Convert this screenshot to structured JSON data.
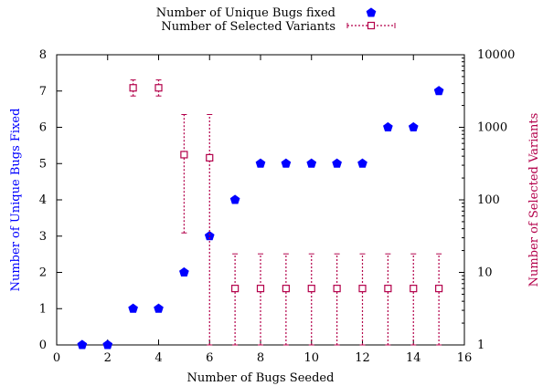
{
  "chart_data": {
    "type": "scatter",
    "xlabel": "Number of Bugs Seeded",
    "ylabel_left": "Number of Unique Bugs Fixed",
    "ylabel_right": "Number of Selected Variants",
    "xlim": [
      0,
      16
    ],
    "x_ticks": [
      0,
      2,
      4,
      6,
      8,
      10,
      12,
      14,
      16
    ],
    "ylim_left": [
      0,
      8
    ],
    "y_left_ticks": [
      0,
      1,
      2,
      3,
      4,
      5,
      6,
      7,
      8
    ],
    "ylim_right": [
      1,
      10000
    ],
    "y_right_scale": "log",
    "y_right_ticks": [
      1,
      10,
      100,
      1000,
      10000
    ],
    "grid": false,
    "legend_position": "top-center",
    "colors": {
      "bugs_fixed": "#0000ff",
      "variants": "#b3004a",
      "axis_left_label": "#0000ff",
      "axis_right_label": "#b3004a"
    },
    "series": [
      {
        "name": "Number of Unique Bugs fixed",
        "axis": "left",
        "marker": "pentagon",
        "x": [
          1,
          2,
          3,
          4,
          5,
          6,
          7,
          8,
          9,
          10,
          11,
          12,
          13,
          14,
          15
        ],
        "y": [
          0,
          0,
          1,
          1,
          2,
          3,
          4,
          5,
          5,
          5,
          5,
          5,
          6,
          6,
          7
        ]
      },
      {
        "name": "Number of Selected Variants",
        "axis": "right",
        "marker": "open-square-errorbar",
        "x": [
          3,
          4,
          5,
          6,
          7,
          8,
          9,
          10,
          11,
          12,
          13,
          14,
          15
        ],
        "y": [
          3500,
          3500,
          420,
          380,
          6,
          6,
          6,
          6,
          6,
          6,
          6,
          6,
          6
        ],
        "y_low": [
          2700,
          2700,
          35,
          1,
          1,
          1,
          1,
          1,
          1,
          1,
          1,
          1,
          1
        ],
        "y_high": [
          4500,
          4500,
          1500,
          1500,
          18,
          18,
          18,
          18,
          18,
          18,
          18,
          18,
          18
        ]
      }
    ]
  }
}
